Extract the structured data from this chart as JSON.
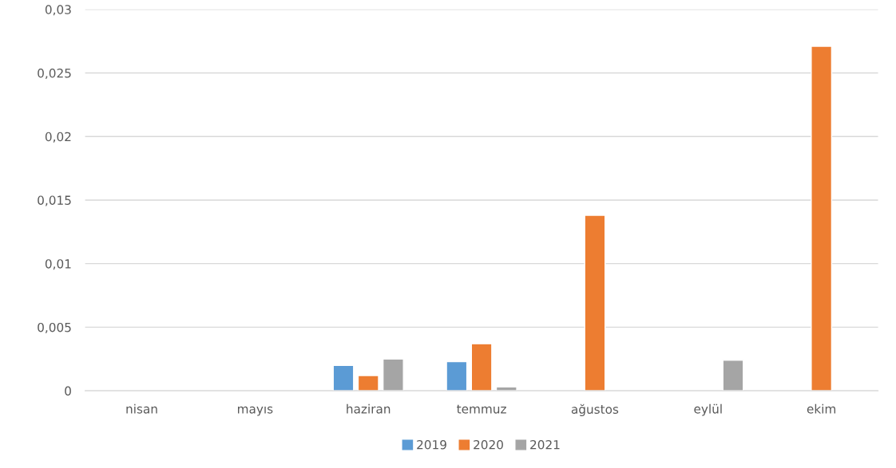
{
  "chart_data": {
    "type": "bar",
    "categories": [
      "nisan",
      "mayıs",
      "haziran",
      "temmuz",
      "ağustos",
      "eylül",
      "ekim"
    ],
    "series": [
      {
        "name": "2019",
        "color": "#5b9bd5",
        "values": [
          null,
          null,
          0.002,
          0.0023,
          null,
          null,
          null
        ]
      },
      {
        "name": "2020",
        "color": "#ed7d31",
        "values": [
          null,
          null,
          0.0012,
          0.0037,
          0.0138,
          null,
          0.0271
        ]
      },
      {
        "name": "2021",
        "color": "#a5a5a5",
        "values": [
          null,
          null,
          0.0025,
          0.0003,
          null,
          0.0024,
          null
        ]
      }
    ],
    "ylim": [
      0,
      0.03
    ],
    "yticks": [
      {
        "value": 0,
        "label": "0"
      },
      {
        "value": 0.005,
        "label": "0,005"
      },
      {
        "value": 0.01,
        "label": "0,01"
      },
      {
        "value": 0.015,
        "label": "0,015"
      },
      {
        "value": 0.02,
        "label": "0,02"
      },
      {
        "value": 0.025,
        "label": "0,025"
      },
      {
        "value": 0.03,
        "label": "0,03"
      }
    ],
    "grid": "y",
    "legend": "bottom"
  }
}
